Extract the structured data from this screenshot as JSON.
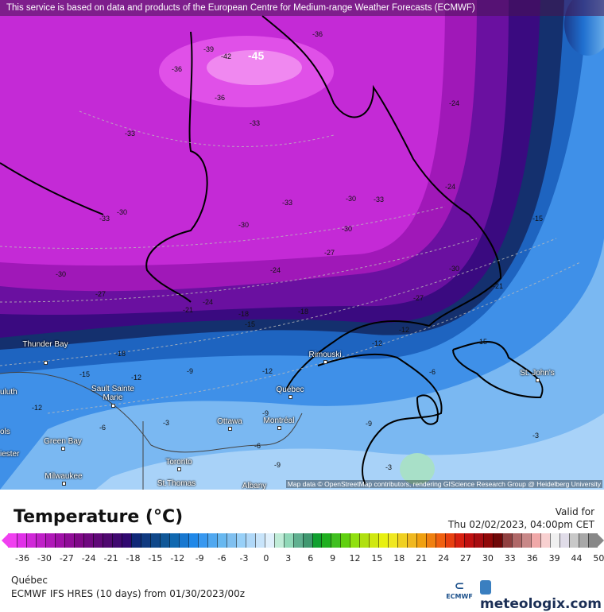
{
  "banner": "This service is based on data and products of the European Centre for Medium-range Weather Forecasts (ECMWF)",
  "attribution": "Map data © OpenStreetMap contributors, rendering GIScience Research Group @ Heidelberg University",
  "cities": [
    "Thunder Bay",
    "Sault Sainte Marie",
    "uluth",
    "ols",
    "iester",
    "Green Bay",
    "Milwaukee",
    "Toronto",
    "St.Thomas",
    "Ottawa",
    "Montréal",
    "Québec",
    "Rimouski",
    "St. John's",
    "Albany"
  ],
  "contour_labels": [
    "-45",
    "-42",
    "-39",
    "-36",
    "-36",
    "-36",
    "-33",
    "-33",
    "-33",
    "-33",
    "-30",
    "-30",
    "-30",
    "-30",
    "-30",
    "-27",
    "-27",
    "-27",
    "-24",
    "-24",
    "-24",
    "-21",
    "-21",
    "-18",
    "-18",
    "-18",
    "-15",
    "-15",
    "-15",
    "-15",
    "-12",
    "-12",
    "-12",
    "-12",
    "-12",
    "-9",
    "-9",
    "-9",
    "-9",
    "-6",
    "-6",
    "-6",
    "-3",
    "-3",
    "-3",
    "-33",
    "-30",
    "-24"
  ],
  "legend": {
    "title": "Temperature (°C)",
    "valid_label": "Valid for",
    "valid_time": "Thu 02/02/2023, 04:00pm CET",
    "ticks": [
      "-36",
      "-30",
      "-27",
      "-24",
      "-21",
      "-18",
      "-15",
      "-12",
      "-9",
      "-6",
      "-3",
      "0",
      "3",
      "6",
      "9",
      "12",
      "15",
      "18",
      "21",
      "24",
      "27",
      "30",
      "33",
      "36",
      "39",
      "44",
      "50"
    ],
    "colors": [
      "#f040f0",
      "#e030e8",
      "#d028d8",
      "#c020c8",
      "#b018b8",
      "#a010a8",
      "#900c98",
      "#800888",
      "#700880",
      "#600878",
      "#500870",
      "#400870",
      "#300870",
      "#102878",
      "#103a80",
      "#10488a",
      "#105898",
      "#1068b0",
      "#1878d0",
      "#2088e8",
      "#3898f0",
      "#50a8f0",
      "#68b8f0",
      "#80c0f0",
      "#98d0f8",
      "#b0d8f8",
      "#c8e4fa",
      "#e0f0fc",
      "#c0ecd8",
      "#90d8b8",
      "#60b090",
      "#409870",
      "#10a030",
      "#20b020",
      "#40c020",
      "#60d010",
      "#90e010",
      "#b0e010",
      "#d0e810",
      "#e8f010",
      "#f0e820",
      "#f0d020",
      "#f0b820",
      "#f0a010",
      "#f08010",
      "#f06010",
      "#e84010",
      "#d82010",
      "#c01010",
      "#a80c10",
      "#900808",
      "#700808",
      "#904040",
      "#b06868",
      "#c88888",
      "#f0a8a8",
      "#f8d0d0",
      "#f0f0f0",
      "#e0dce8",
      "#c8c8c8",
      "#a8a8a8",
      "#888888"
    ]
  },
  "region": "Québec",
  "model": "ECMWF IFS HRES (10 days) from 01/30/2023/00z",
  "logos": {
    "ecmwf": "ECMWF",
    "meteologix": "meteologix.com"
  }
}
